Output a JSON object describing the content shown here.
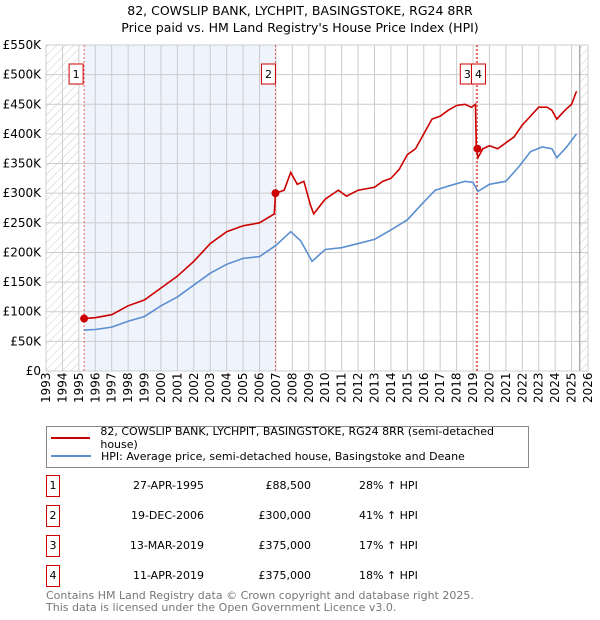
{
  "title": "82, COWSLIP BANK, LYCHPIT, BASINGSTOKE, RG24 8RR",
  "subtitle": "Price paid vs. HM Land Registry's House Price Index (HPI)",
  "chart_data": {
    "type": "line",
    "xlim": [
      1993,
      2026
    ],
    "ylim": [
      0,
      550000
    ],
    "y_ticks": [
      {
        "v": 0,
        "l": "£0"
      },
      {
        "v": 50000,
        "l": "£50K"
      },
      {
        "v": 100000,
        "l": "£100K"
      },
      {
        "v": 150000,
        "l": "£150K"
      },
      {
        "v": 200000,
        "l": "£200K"
      },
      {
        "v": 250000,
        "l": "£250K"
      },
      {
        "v": 300000,
        "l": "£300K"
      },
      {
        "v": 350000,
        "l": "£350K"
      },
      {
        "v": 400000,
        "l": "£400K"
      },
      {
        "v": 450000,
        "l": "£450K"
      },
      {
        "v": 500000,
        "l": "£500K"
      },
      {
        "v": 550000,
        "l": "£550K"
      }
    ],
    "x_ticks": [
      "1993",
      "1994",
      "1995",
      "1996",
      "1997",
      "1998",
      "1999",
      "2000",
      "2001",
      "2002",
      "2003",
      "2004",
      "2005",
      "2006",
      "2007",
      "2008",
      "2009",
      "2010",
      "2011",
      "2012",
      "2013",
      "2014",
      "2015",
      "2016",
      "2017",
      "2018",
      "2019",
      "2020",
      "2021",
      "2022",
      "2023",
      "2024",
      "2025",
      "2026"
    ],
    "series": [
      {
        "name": "82, COWSLIP BANK, LYCHPIT, BASINGSTOKE, RG24 8RR (semi-detached house)",
        "color": "#cc0000",
        "x": [
          1995.32,
          1996,
          1997,
          1998,
          1999,
          2000,
          2001,
          2002,
          2003,
          2004,
          2005,
          2006,
          2006.9,
          2006.97,
          2007.5,
          2007.9,
          2008.3,
          2008.7,
          2009.1,
          2009.3,
          2010,
          2010.8,
          2011.3,
          2012,
          2013,
          2013.5,
          2014,
          2014.5,
          2015,
          2015.5,
          2016,
          2016.5,
          2017,
          2017.5,
          2018,
          2018.5,
          2018.9,
          2019.15,
          2019.2,
          2019.3,
          2019.6,
          2020,
          2020.5,
          2021,
          2021.5,
          2022,
          2022.5,
          2023,
          2023.5,
          2023.8,
          2024.1,
          2024.6,
          2025,
          2025.3
        ],
        "y": [
          88500,
          90000,
          95000,
          110000,
          120000,
          140000,
          160000,
          185000,
          215000,
          235000,
          245000,
          250000,
          265000,
          300000,
          305000,
          335000,
          315000,
          320000,
          280000,
          265000,
          290000,
          305000,
          295000,
          305000,
          310000,
          320000,
          325000,
          340000,
          365000,
          375000,
          400000,
          425000,
          430000,
          440000,
          448000,
          450000,
          445000,
          450000,
          375000,
          360000,
          375000,
          380000,
          375000,
          385000,
          395000,
          415000,
          430000,
          445000,
          445000,
          440000,
          425000,
          440000,
          450000,
          472000
        ]
      },
      {
        "name": "HPI: Average price, semi-detached house, Basingstoke and Deane",
        "color": "#5b8fd0",
        "x": [
          1995.32,
          1996,
          1997,
          1998,
          1999,
          2000,
          2001,
          2002,
          2003,
          2004,
          2005,
          2006,
          2007,
          2007.9,
          2008.5,
          2009.2,
          2010,
          2011,
          2012,
          2013,
          2014,
          2015,
          2016,
          2016.7,
          2017.5,
          2018.5,
          2019,
          2019.3,
          2020,
          2021,
          2021.8,
          2022.5,
          2023.2,
          2023.8,
          2024.1,
          2024.7,
          2025.3
        ],
        "y": [
          69000,
          70000,
          74000,
          84000,
          92000,
          110000,
          125000,
          145000,
          165000,
          180000,
          190000,
          193000,
          212000,
          235000,
          220000,
          185000,
          205000,
          208000,
          215000,
          222000,
          238000,
          255000,
          285000,
          305000,
          312000,
          320000,
          318000,
          303000,
          315000,
          320000,
          345000,
          370000,
          378000,
          375000,
          360000,
          378000,
          400000
        ]
      }
    ],
    "sales": [
      {
        "label": "1",
        "x": 1995.32,
        "y": 88500
      },
      {
        "label": "2",
        "x": 2006.97,
        "y": 300000
      },
      {
        "label": "3",
        "x": 2019.2,
        "y": 375000
      },
      {
        "label": "4",
        "x": 2019.27,
        "y": 375000
      }
    ]
  },
  "legend": [
    "82, COWSLIP BANK, LYCHPIT, BASINGSTOKE, RG24 8RR (semi-detached house)",
    "HPI: Average price, semi-detached house, Basingstoke and Deane"
  ],
  "rows": [
    {
      "n": "1",
      "date": "27-APR-1995",
      "price": "£88,500",
      "pct": "28% ↑ HPI"
    },
    {
      "n": "2",
      "date": "19-DEC-2006",
      "price": "£300,000",
      "pct": "41% ↑ HPI"
    },
    {
      "n": "3",
      "date": "13-MAR-2019",
      "price": "£375,000",
      "pct": "17% ↑ HPI"
    },
    {
      "n": "4",
      "date": "11-APR-2019",
      "price": "£375,000",
      "pct": "18% ↑ HPI"
    }
  ],
  "footer": [
    "Contains HM Land Registry data © Crown copyright and database right 2025.",
    "This data is licensed under the Open Government Licence v3.0."
  ]
}
